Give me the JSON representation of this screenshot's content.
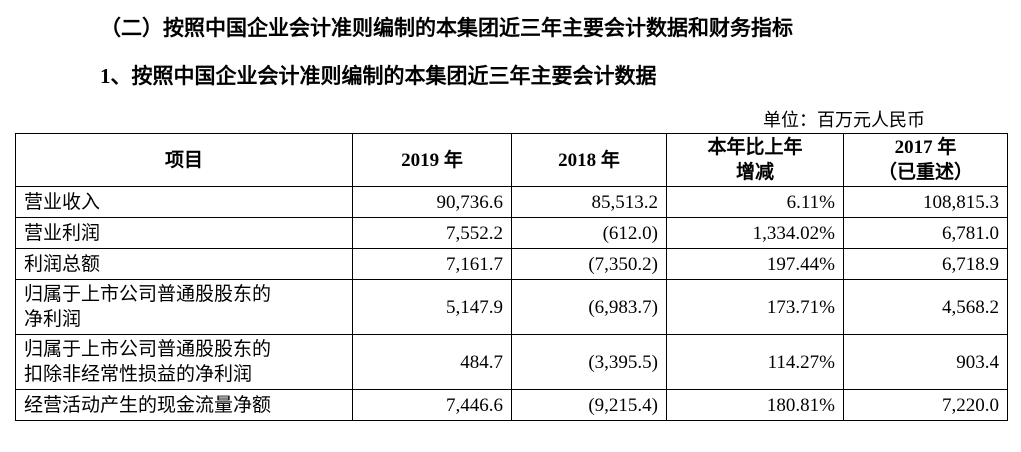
{
  "header": {
    "title": "（二）按照中国企业会计准则编制的本集团近三年主要会计数据和财务指标",
    "subtitle": "1、按照中国企业会计准则编制的本集团近三年主要会计数据",
    "unit": "单位：百万元人民币"
  },
  "table": {
    "columns": [
      [
        "项目"
      ],
      [
        "2019 年"
      ],
      [
        "2018 年"
      ],
      [
        "本年比上年",
        "增减"
      ],
      [
        "2017 年",
        "（已重述）"
      ]
    ],
    "rows": [
      [
        "营业收入",
        "90,736.6",
        "85,513.2",
        "6.11%",
        "108,815.3"
      ],
      [
        "营业利润",
        "7,552.2",
        "(612.0)",
        "1,334.02%",
        "6,781.0"
      ],
      [
        "利润总额",
        "7,161.7",
        "(7,350.2)",
        "197.44%",
        "6,718.9"
      ],
      [
        "归属于上市公司普通股股东的净利润",
        "5,147.9",
        "(6,983.7)",
        "173.71%",
        "4,568.2"
      ],
      [
        "归属于上市公司普通股股东的扣除非经常性损益的净利润",
        "484.7",
        "(3,395.5)",
        "114.27%",
        "903.4"
      ],
      [
        "经营活动产生的现金流量净额",
        "7,446.6",
        "(9,215.4)",
        "180.81%",
        "7,220.0"
      ]
    ]
  }
}
